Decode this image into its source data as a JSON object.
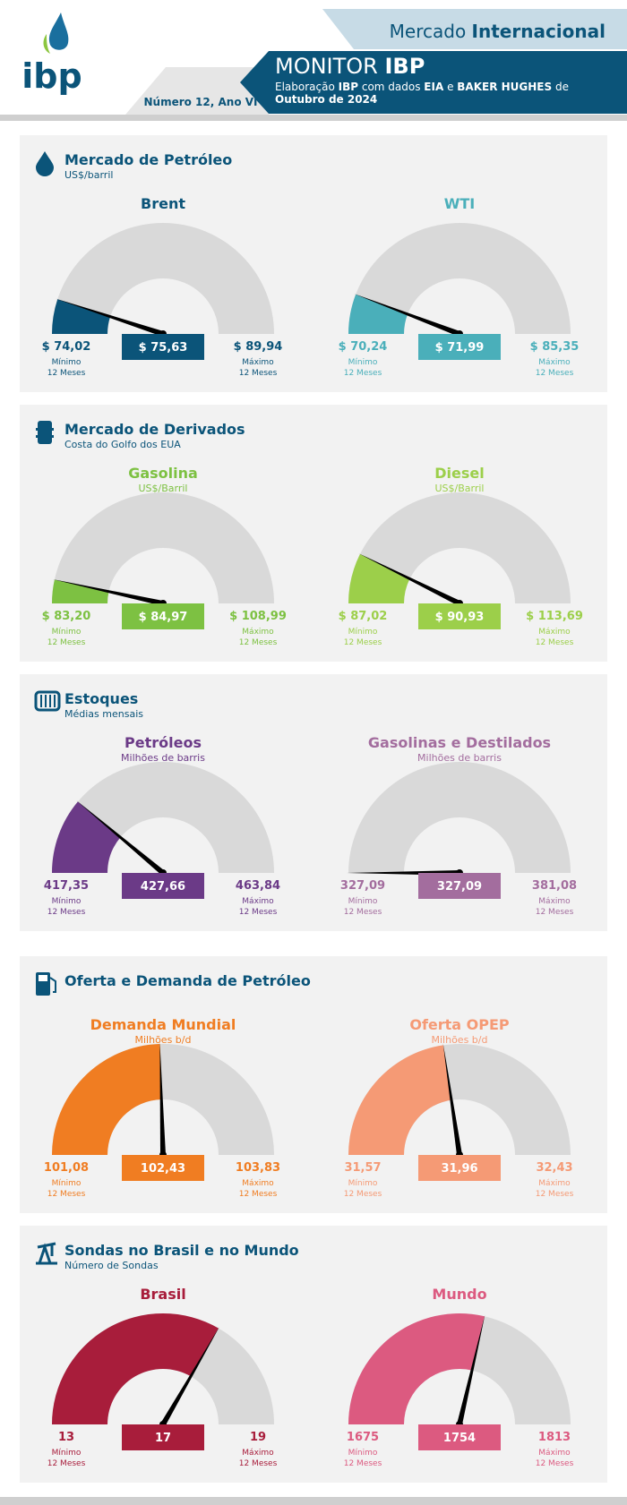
{
  "header": {
    "brand": "ibp",
    "top_line": [
      {
        "text": "Mercado ",
        "bold": false
      },
      {
        "text": "Internacional",
        "bold": true
      }
    ],
    "monitor": [
      {
        "text": "MONITOR ",
        "bold": false
      },
      {
        "text": "IBP",
        "bold": true
      }
    ],
    "credit_line1": [
      {
        "text": "Elaboração ",
        "bold": false
      },
      {
        "text": "IBP",
        "bold": true
      },
      {
        "text": " com dados ",
        "bold": false
      },
      {
        "text": "EIA",
        "bold": true
      },
      {
        "text": " e ",
        "bold": false
      },
      {
        "text": "BAKER HUGHES",
        "bold": true
      },
      {
        "text": " de",
        "bold": false
      }
    ],
    "credit_line2": [
      {
        "text": "Outubro de 2024",
        "bold": true
      }
    ],
    "issue": "Número 12, Ano VI"
  },
  "min_caption": [
    "Mínimo",
    "12 Meses"
  ],
  "max_caption": [
    "Máximo",
    "12 Meses"
  ],
  "sections": [
    {
      "title": "Mercado de Petróleo",
      "subtitle": "US$/barril",
      "gauges": [
        {
          "title": "Brent",
          "color": "#0b5479",
          "min": {
            "value": 74.02,
            "label": "$ 74,02"
          },
          "value": {
            "value": 75.63,
            "label": "$ 75,63"
          },
          "max": {
            "value": 89.94,
            "label": "$ 89,94"
          }
        },
        {
          "title": "WTI",
          "color": "#4aafba",
          "min": {
            "value": 70.24,
            "label": "$ 70,24"
          },
          "value": {
            "value": 71.99,
            "label": "$ 71,99"
          },
          "max": {
            "value": 85.35,
            "label": "$ 85,35"
          }
        }
      ]
    },
    {
      "title": "Mercado de Derivados",
      "subtitle": "Costa do Golfo dos EUA",
      "gauges": [
        {
          "title": "Gasolina",
          "units": "US$/Barril",
          "color": "#7dc142",
          "min": {
            "value": 83.2,
            "label": "$ 83,20"
          },
          "value": {
            "value": 84.97,
            "label": "$ 84,97"
          },
          "max": {
            "value": 108.99,
            "label": "$ 108,99"
          }
        },
        {
          "title": "Diesel",
          "units": "US$/Barril",
          "color": "#9ccf4a",
          "min": {
            "value": 87.02,
            "label": "$ 87,02"
          },
          "value": {
            "value": 90.93,
            "label": "$ 90,93"
          },
          "max": {
            "value": 113.69,
            "label": "$ 113,69"
          }
        }
      ]
    },
    {
      "title": "Estoques",
      "subtitle": "Médias mensais",
      "gauges": [
        {
          "title": "Petróleos",
          "units": "Milhões de barris",
          "color": "#6b3a87",
          "min": {
            "value": 417.35,
            "label": "417,35"
          },
          "value": {
            "value": 427.66,
            "label": "427,66"
          },
          "max": {
            "value": 463.84,
            "label": "463,84"
          }
        },
        {
          "title": "Gasolinas e Destilados",
          "units": "Milhões de barris",
          "color": "#a36d9e",
          "min": {
            "value": 327.09,
            "label": "327,09"
          },
          "value": {
            "value": 327.09,
            "label": "327,09"
          },
          "max": {
            "value": 381.08,
            "label": "381,08"
          }
        }
      ]
    },
    {
      "title": "Oferta e Demanda de Petróleo",
      "gauges": [
        {
          "title": "Demanda Mundial",
          "units": "Milhões b/d",
          "color": "#f07d22",
          "min": {
            "value": 101.08,
            "label": "101,08"
          },
          "value": {
            "value": 102.43,
            "label": "102,43"
          },
          "max": {
            "value": 103.83,
            "label": "103,83"
          }
        },
        {
          "title": "Oferta OPEP",
          "units": "Milhões b/d",
          "color": "#f59a75",
          "min": {
            "value": 31.57,
            "label": "31,57"
          },
          "value": {
            "value": 31.96,
            "label": "31,96"
          },
          "max": {
            "value": 32.43,
            "label": "32,43"
          }
        }
      ]
    },
    {
      "title": "Sondas no Brasil e no Mundo",
      "subtitle": "Número de Sondas",
      "gauges": [
        {
          "title": "Brasil",
          "color": "#a81d3b",
          "min": {
            "value": 13,
            "label": "13"
          },
          "value": {
            "value": 17,
            "label": "17"
          },
          "max": {
            "value": 19,
            "label": "19"
          }
        },
        {
          "title": "Mundo",
          "color": "#dc5a80",
          "min": {
            "value": 1675,
            "label": "1675"
          },
          "value": {
            "value": 1754,
            "label": "1754"
          },
          "max": {
            "value": 1813,
            "label": "1813"
          }
        }
      ]
    }
  ]
}
